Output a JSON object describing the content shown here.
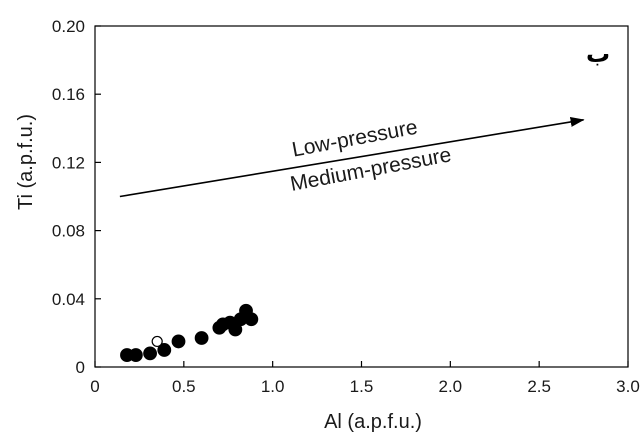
{
  "chart_data": {
    "type": "scatter",
    "title": "",
    "xlabel": "Al (a.p.f.u.)",
    "ylabel": "Ti (a.p.f.u.)",
    "xlim": [
      0,
      3.0
    ],
    "ylim": [
      0,
      0.2
    ],
    "x_ticks": [
      0,
      0.5,
      1.0,
      1.5,
      2.0,
      2.5,
      3.0
    ],
    "x_tick_labels": [
      "0",
      "0.5",
      "1.0",
      "1.5",
      "2.0",
      "2.5",
      "3.0"
    ],
    "y_ticks": [
      0,
      0.04,
      0.08,
      0.12,
      0.16,
      0.2
    ],
    "y_tick_labels": [
      "0",
      "0.04",
      "0.08",
      "0.12",
      "0.16",
      "0.20"
    ],
    "grid": false,
    "panel_label": "ب",
    "annotations": {
      "arrow": {
        "from": [
          0.14,
          0.1
        ],
        "to": [
          2.75,
          0.145
        ]
      },
      "upper_label": "Low-pressure",
      "lower_label": "Medium-pressure"
    },
    "series": [
      {
        "marker": "filled-circle",
        "color": "#000000",
        "points": [
          {
            "x": 0.18,
            "y": 0.007
          },
          {
            "x": 0.23,
            "y": 0.007
          },
          {
            "x": 0.31,
            "y": 0.008
          },
          {
            "x": 0.39,
            "y": 0.01
          },
          {
            "x": 0.47,
            "y": 0.015
          },
          {
            "x": 0.6,
            "y": 0.017
          },
          {
            "x": 0.7,
            "y": 0.023
          },
          {
            "x": 0.72,
            "y": 0.025
          },
          {
            "x": 0.76,
            "y": 0.026
          },
          {
            "x": 0.79,
            "y": 0.022
          },
          {
            "x": 0.82,
            "y": 0.028
          },
          {
            "x": 0.85,
            "y": 0.033
          },
          {
            "x": 0.88,
            "y": 0.028
          }
        ]
      },
      {
        "marker": "open-circle",
        "color": "#000000",
        "points": [
          {
            "x": 0.35,
            "y": 0.015
          }
        ]
      }
    ]
  }
}
